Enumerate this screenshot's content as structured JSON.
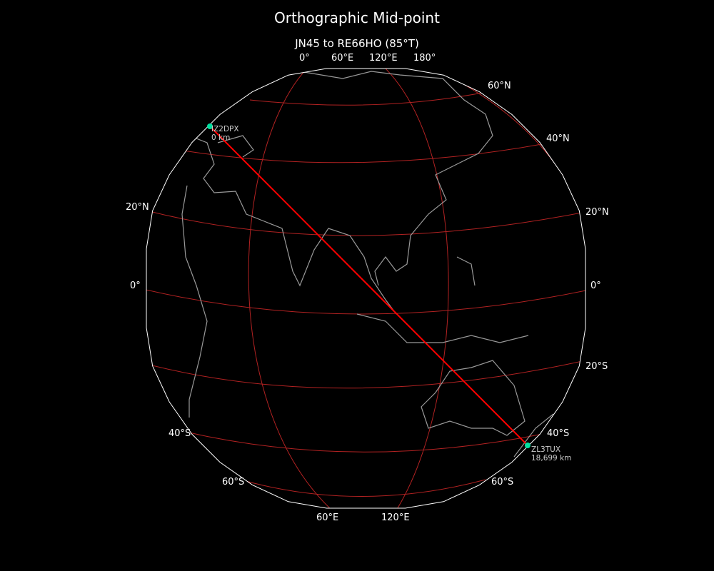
{
  "title": "Orthographic Mid-point",
  "subtitle": "JN45 to RE66HO (85°T)",
  "colors": {
    "background": "#000000",
    "path": "#ff0000",
    "graticule": "#b22222",
    "coastline": "#999999",
    "station": "#00e0a0",
    "globe_edge": "#ffffff"
  },
  "top_labels": [
    "0°",
    "60°E",
    "120°E",
    "180°"
  ],
  "bottom_labels": [
    "60°E",
    "120°E"
  ],
  "left_labels": [
    "20°N",
    "0°",
    "40°S",
    "60°S"
  ],
  "right_labels": [
    "60°N",
    "40°N",
    "20°N",
    "0°",
    "20°S",
    "40°S",
    "60°S"
  ],
  "start": {
    "call": "IZ2DPX",
    "distance": "0 km"
  },
  "end": {
    "call": "ZL3TUX",
    "distance": "18,699 km"
  }
}
